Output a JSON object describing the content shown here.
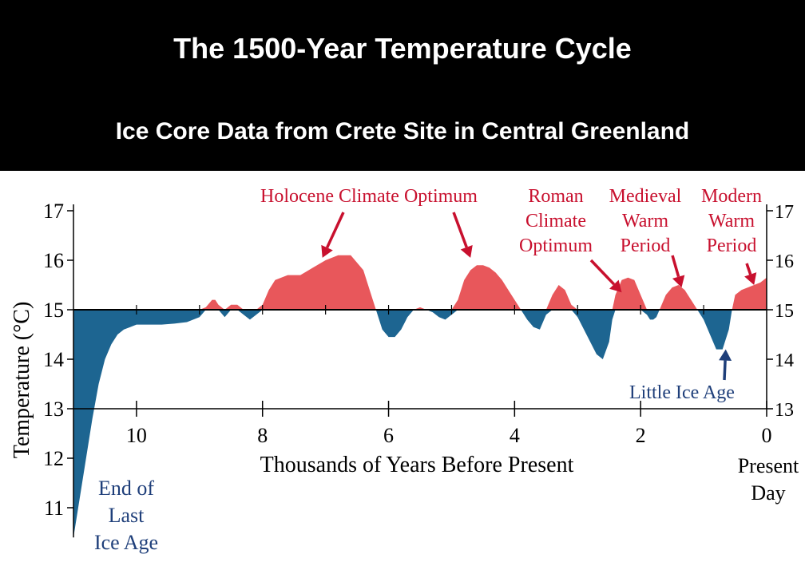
{
  "header": {
    "title": "The 1500-Year Temperature Cycle",
    "subtitle": "Ice Core Data from Crete Site in Central Greenland"
  },
  "chart_data": {
    "type": "area",
    "title": "The 1500-Year Temperature Cycle",
    "subtitle": "Ice Core Data from Crete Site in Central Greenland",
    "xlabel": "Thousands of Years Before Present",
    "ylabel": "Temperature (°C)",
    "xlim": [
      11.0,
      0.0
    ],
    "ylim": [
      10.4,
      17.0
    ],
    "baseline": 15,
    "x_ticks": [
      10,
      8,
      6,
      4,
      2,
      0
    ],
    "x_tick_labels": [
      "10",
      "8",
      "6",
      "4",
      "2",
      "0"
    ],
    "y_ticks_left": [
      17,
      16,
      15,
      14,
      13,
      12,
      11
    ],
    "y_tick_labels_left": [
      "17",
      "16",
      "15",
      "14",
      "13",
      "12",
      "11"
    ],
    "y_ticks_right": [
      17,
      16,
      15,
      14,
      13
    ],
    "y_tick_labels_right": [
      "17",
      "16",
      "15",
      "14",
      "13"
    ],
    "colors": {
      "warm": "#e8575b",
      "cold": "#1d6591",
      "warm_label": "#c8102e",
      "cold_label": "#1f3f7a"
    },
    "series": [
      {
        "name": "Temperature",
        "x": [
          11.0,
          10.9,
          10.8,
          10.7,
          10.6,
          10.5,
          10.4,
          10.3,
          10.2,
          10.1,
          10.0,
          9.9,
          9.8,
          9.6,
          9.4,
          9.2,
          9.0,
          8.9,
          8.8,
          8.75,
          8.7,
          8.6,
          8.5,
          8.4,
          8.3,
          8.2,
          8.1,
          8.0,
          7.9,
          7.8,
          7.6,
          7.4,
          7.2,
          7.0,
          6.8,
          6.6,
          6.4,
          6.3,
          6.2,
          6.1,
          6.0,
          5.9,
          5.8,
          5.7,
          5.6,
          5.5,
          5.4,
          5.3,
          5.2,
          5.1,
          5.0,
          4.9,
          4.8,
          4.7,
          4.6,
          4.5,
          4.4,
          4.3,
          4.2,
          4.1,
          4.0,
          3.9,
          3.8,
          3.7,
          3.6,
          3.5,
          3.4,
          3.3,
          3.2,
          3.1,
          3.0,
          2.9,
          2.8,
          2.7,
          2.6,
          2.5,
          2.45,
          2.4,
          2.3,
          2.2,
          2.1,
          2.0,
          1.9,
          1.85,
          1.8,
          1.75,
          1.7,
          1.6,
          1.5,
          1.4,
          1.3,
          1.2,
          1.1,
          1.0,
          0.9,
          0.8,
          0.7,
          0.6,
          0.55,
          0.5,
          0.4,
          0.3,
          0.2,
          0.1,
          0.0
        ],
        "values": [
          10.4,
          11.2,
          12.0,
          12.8,
          13.5,
          14.0,
          14.3,
          14.5,
          14.6,
          14.65,
          14.7,
          14.7,
          14.7,
          14.7,
          14.72,
          14.75,
          14.85,
          15.05,
          15.2,
          15.2,
          15.1,
          14.85,
          15.1,
          15.1,
          14.9,
          14.8,
          14.9,
          15.1,
          15.4,
          15.6,
          15.7,
          15.7,
          15.85,
          16.0,
          16.1,
          16.1,
          15.8,
          15.4,
          15.0,
          14.6,
          14.45,
          14.45,
          14.6,
          14.85,
          15.0,
          15.05,
          15.0,
          14.95,
          14.85,
          14.8,
          14.9,
          15.2,
          15.6,
          15.8,
          15.9,
          15.9,
          15.85,
          15.75,
          15.6,
          15.4,
          15.2,
          15.0,
          14.8,
          14.65,
          14.6,
          14.9,
          15.3,
          15.5,
          15.4,
          15.1,
          14.85,
          14.6,
          14.35,
          14.1,
          14.0,
          14.35,
          14.8,
          15.3,
          15.6,
          15.65,
          15.6,
          15.3,
          14.9,
          14.8,
          14.8,
          14.85,
          15.0,
          15.3,
          15.45,
          15.5,
          15.4,
          15.2,
          15.0,
          14.8,
          14.5,
          14.2,
          14.2,
          14.6,
          15.0,
          15.3,
          15.4,
          15.45,
          15.5,
          15.55,
          15.65
        ]
      }
    ],
    "annotations": [
      {
        "id": "holocene",
        "lines": [
          "Holocene Climate Optimum"
        ],
        "color": "warm_label",
        "arrows": [
          {
            "x": 7.05,
            "y": 16.05
          },
          {
            "x": 4.7,
            "y": 16.05
          }
        ]
      },
      {
        "id": "roman",
        "lines": [
          "Roman",
          "Climate",
          "Optimum"
        ],
        "color": "warm_label",
        "arrows": [
          {
            "x": 2.3,
            "y": 15.35
          }
        ]
      },
      {
        "id": "medieval",
        "lines": [
          "Medieval",
          "Warm",
          "Period"
        ],
        "color": "warm_label",
        "arrows": [
          {
            "x": 1.35,
            "y": 15.45
          }
        ]
      },
      {
        "id": "modern",
        "lines": [
          "Modern",
          "Warm",
          "Period"
        ],
        "color": "warm_label",
        "arrows": [
          {
            "x": 0.2,
            "y": 15.5
          }
        ]
      },
      {
        "id": "little-ice-age",
        "lines": [
          "Little Ice Age"
        ],
        "color": "cold_label",
        "arrows": [
          {
            "x": 0.65,
            "y": 14.2
          }
        ]
      },
      {
        "id": "end-last-ice-age",
        "lines": [
          "End of",
          "Last",
          "Ice Age"
        ],
        "color": "cold_label",
        "arrows": []
      },
      {
        "id": "present-day",
        "lines": [
          "Present",
          "Day"
        ],
        "color": "black",
        "arrows": []
      }
    ]
  }
}
